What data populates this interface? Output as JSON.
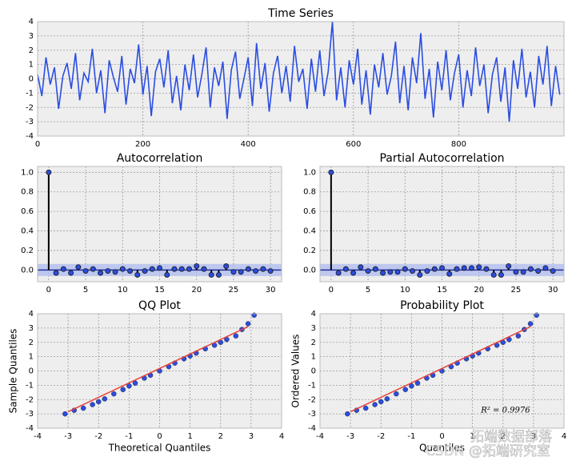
{
  "chart_data": [
    {
      "type": "line",
      "title": "Time Series",
      "color": "#2b4ee0",
      "grid": true,
      "xlim": [
        0,
        1000
      ],
      "xticks": [
        0,
        200,
        400,
        600,
        800
      ],
      "ylim": [
        -4,
        4
      ],
      "yticks": [
        -4,
        -3,
        -2,
        -1,
        0,
        1,
        2,
        3,
        4
      ],
      "x": [
        0,
        8,
        16,
        24,
        32,
        40,
        48,
        56,
        64,
        72,
        80,
        88,
        96,
        104,
        112,
        120,
        128,
        136,
        144,
        152,
        160,
        168,
        176,
        184,
        192,
        200,
        208,
        216,
        224,
        232,
        240,
        248,
        256,
        264,
        272,
        280,
        288,
        296,
        304,
        312,
        320,
        328,
        336,
        344,
        352,
        360,
        368,
        376,
        384,
        392,
        400,
        408,
        416,
        424,
        432,
        440,
        448,
        456,
        464,
        472,
        480,
        488,
        496,
        504,
        512,
        520,
        528,
        536,
        544,
        552,
        560,
        568,
        576,
        584,
        592,
        600,
        608,
        616,
        624,
        632,
        640,
        648,
        656,
        664,
        672,
        680,
        688,
        696,
        704,
        712,
        720,
        728,
        736,
        744,
        752,
        760,
        768,
        776,
        784,
        792,
        800,
        808,
        816,
        824,
        832,
        840,
        848,
        856,
        864,
        872,
        880,
        888,
        896,
        904,
        912,
        920,
        928,
        936,
        944,
        952,
        960,
        968,
        976,
        984,
        992
      ],
      "values": [
        0.3,
        -1.2,
        1.5,
        -0.4,
        0.8,
        -2.1,
        0.2,
        1.1,
        -0.7,
        1.8,
        -1.5,
        0.4,
        -0.2,
        2.1,
        -1.0,
        0.6,
        -2.4,
        1.3,
        0.1,
        -0.9,
        1.6,
        -1.8,
        0.7,
        -0.3,
        2.4,
        -1.1,
        0.9,
        -2.6,
        0.5,
        1.4,
        -0.6,
        2.0,
        -1.7,
        0.2,
        -2.2,
        1.0,
        -0.8,
        1.7,
        -1.3,
        0.3,
        2.2,
        -2.0,
        0.8,
        -0.5,
        1.2,
        -2.8,
        0.6,
        1.9,
        -1.4,
        0.0,
        1.5,
        -1.9,
        2.5,
        -0.7,
        1.1,
        -2.3,
        0.4,
        1.6,
        -1.0,
        0.9,
        -1.6,
        2.3,
        -0.2,
        0.7,
        -2.1,
        1.4,
        -0.9,
        2.0,
        -1.2,
        0.5,
        4.0,
        -1.5,
        0.8,
        -2.0,
        1.3,
        -0.4,
        2.1,
        -1.8,
        0.6,
        -2.5,
        1.0,
        -0.6,
        1.8,
        -1.1,
        0.2,
        2.6,
        -1.7,
        0.9,
        -2.2,
        1.5,
        -0.3,
        3.2,
        -1.4,
        0.7,
        -2.7,
        1.2,
        -0.8,
        2.0,
        -1.5,
        0.4,
        1.7,
        -2.0,
        0.6,
        -1.2,
        2.2,
        -0.5,
        1.0,
        -2.4,
        0.3,
        1.5,
        -1.6,
        0.8,
        -3.0,
        1.3,
        -0.7,
        2.1,
        -1.3,
        0.5,
        -2.0,
        1.6,
        -0.4,
        2.3,
        -1.9,
        0.9,
        -1.1
      ]
    },
    {
      "type": "stem",
      "title": "Autocorrelation",
      "color": "#2b4ee0",
      "band_color": "#aab8f0",
      "grid": true,
      "conf_int": 0.062,
      "xlim": [
        -1.5,
        31.5
      ],
      "xticks": [
        0,
        5,
        10,
        15,
        20,
        25,
        30
      ],
      "ylim": [
        -0.12,
        1.06
      ],
      "yticks": [
        {
          "value": 0,
          "label": "0.0"
        },
        {
          "value": 0.2,
          "label": "0.2"
        },
        {
          "value": 0.4,
          "label": "0.4"
        },
        {
          "value": 0.6,
          "label": "0.6"
        },
        {
          "value": 0.8,
          "label": "0.8"
        },
        {
          "value": 1,
          "label": "1.0"
        }
      ],
      "x": [
        0,
        1,
        2,
        3,
        4,
        5,
        6,
        7,
        8,
        9,
        10,
        11,
        12,
        13,
        14,
        15,
        16,
        17,
        18,
        19,
        20,
        21,
        22,
        23,
        24,
        25,
        26,
        27,
        28,
        29,
        30
      ],
      "values": [
        1.0,
        -0.03,
        0.01,
        -0.03,
        0.03,
        -0.01,
        0.01,
        -0.03,
        -0.01,
        -0.02,
        0.01,
        -0.01,
        -0.05,
        -0.01,
        0.01,
        0.02,
        -0.05,
        0.01,
        0.01,
        0.01,
        0.04,
        0.01,
        -0.05,
        -0.05,
        0.04,
        -0.02,
        -0.02,
        0.01,
        -0.01,
        0.01,
        -0.01
      ]
    },
    {
      "type": "stem",
      "title": "Partial Autocorrelation",
      "color": "#2b4ee0",
      "band_color": "#aab8f0",
      "grid": true,
      "conf_int": 0.062,
      "xlim": [
        -1.5,
        31.5
      ],
      "xticks": [
        0,
        5,
        10,
        15,
        20,
        25,
        30
      ],
      "ylim": [
        -0.12,
        1.06
      ],
      "yticks": [
        {
          "value": 0,
          "label": "0.0"
        },
        {
          "value": 0.2,
          "label": "0.2"
        },
        {
          "value": 0.4,
          "label": "0.4"
        },
        {
          "value": 0.6,
          "label": "0.6"
        },
        {
          "value": 0.8,
          "label": "0.8"
        },
        {
          "value": 1,
          "label": "1.0"
        }
      ],
      "x": [
        0,
        1,
        2,
        3,
        4,
        5,
        6,
        7,
        8,
        9,
        10,
        11,
        12,
        13,
        14,
        15,
        16,
        17,
        18,
        19,
        20,
        21,
        22,
        23,
        24,
        25,
        26,
        27,
        28,
        29,
        30
      ],
      "values": [
        1.0,
        -0.03,
        0.01,
        -0.03,
        0.03,
        -0.01,
        0.01,
        -0.03,
        -0.02,
        -0.02,
        0.01,
        -0.01,
        -0.05,
        -0.01,
        0.01,
        0.02,
        -0.04,
        0.01,
        0.02,
        0.02,
        0.03,
        0.01,
        -0.05,
        -0.05,
        0.04,
        -0.02,
        -0.02,
        0.01,
        -0.01,
        0.02,
        -0.01
      ]
    },
    {
      "type": "scatter",
      "title": "QQ Plot",
      "x_label": "Theoretical Quantiles",
      "y_label": "Sample Quantiles",
      "color": "#2b4ee0",
      "fit_color": "#e8423a",
      "grid": true,
      "xlim": [
        -4,
        4
      ],
      "xticks": [
        -4,
        -3,
        -2,
        -1,
        0,
        1,
        2,
        3,
        4
      ],
      "ylim": [
        -4,
        4
      ],
      "yticks": [
        -4,
        -3,
        -2,
        -1,
        0,
        1,
        2,
        3,
        4
      ],
      "x": [
        -3.1,
        -2.8,
        -2.5,
        -2.2,
        -2.0,
        -1.8,
        -1.5,
        -1.2,
        -1.0,
        -0.8,
        -0.5,
        -0.3,
        0,
        0.3,
        0.5,
        0.8,
        1.0,
        1.2,
        1.5,
        1.8,
        2.0,
        2.2,
        2.5,
        2.7,
        2.9,
        3.1
      ],
      "values": [
        -3.0,
        -2.75,
        -2.6,
        -2.35,
        -2.15,
        -1.95,
        -1.6,
        -1.3,
        -1.05,
        -0.85,
        -0.5,
        -0.3,
        0.0,
        0.3,
        0.55,
        0.85,
        1.05,
        1.25,
        1.55,
        1.8,
        2.0,
        2.2,
        2.45,
        2.9,
        3.3,
        3.9
      ],
      "fit": {
        "x": [
          -3.0,
          2.9
        ],
        "y": [
          -2.85,
          3.1
        ]
      }
    },
    {
      "type": "scatter",
      "title": "Probability Plot",
      "x_label": "Quantiles",
      "y_label": "Ordered Values",
      "annotation": "R² = 0.9976",
      "color": "#2b4ee0",
      "fit_color": "#e8423a",
      "grid": true,
      "xlim": [
        -4,
        4
      ],
      "xticks": [
        -4,
        -3,
        -2,
        -1,
        0,
        1,
        2,
        3,
        4
      ],
      "ylim": [
        -4,
        4
      ],
      "yticks": [
        -4,
        -3,
        -2,
        -1,
        0,
        1,
        2,
        3,
        4
      ],
      "x": [
        -3.1,
        -2.8,
        -2.5,
        -2.2,
        -2.0,
        -1.8,
        -1.5,
        -1.2,
        -1.0,
        -0.8,
        -0.5,
        -0.3,
        0,
        0.3,
        0.5,
        0.8,
        1.0,
        1.2,
        1.5,
        1.8,
        2.0,
        2.2,
        2.5,
        2.7,
        2.9,
        3.1
      ],
      "values": [
        -3.0,
        -2.75,
        -2.6,
        -2.35,
        -2.15,
        -1.95,
        -1.6,
        -1.3,
        -1.05,
        -0.85,
        -0.5,
        -0.3,
        0.0,
        0.3,
        0.55,
        0.85,
        1.05,
        1.25,
        1.55,
        1.8,
        2.0,
        2.2,
        2.45,
        2.9,
        3.3,
        3.9
      ],
      "fit": {
        "x": [
          -3.0,
          2.9
        ],
        "y": [
          -2.85,
          3.1
        ]
      }
    }
  ],
  "watermark": [
    "拓端数据部落",
    "CSDN @拓端研究室"
  ]
}
